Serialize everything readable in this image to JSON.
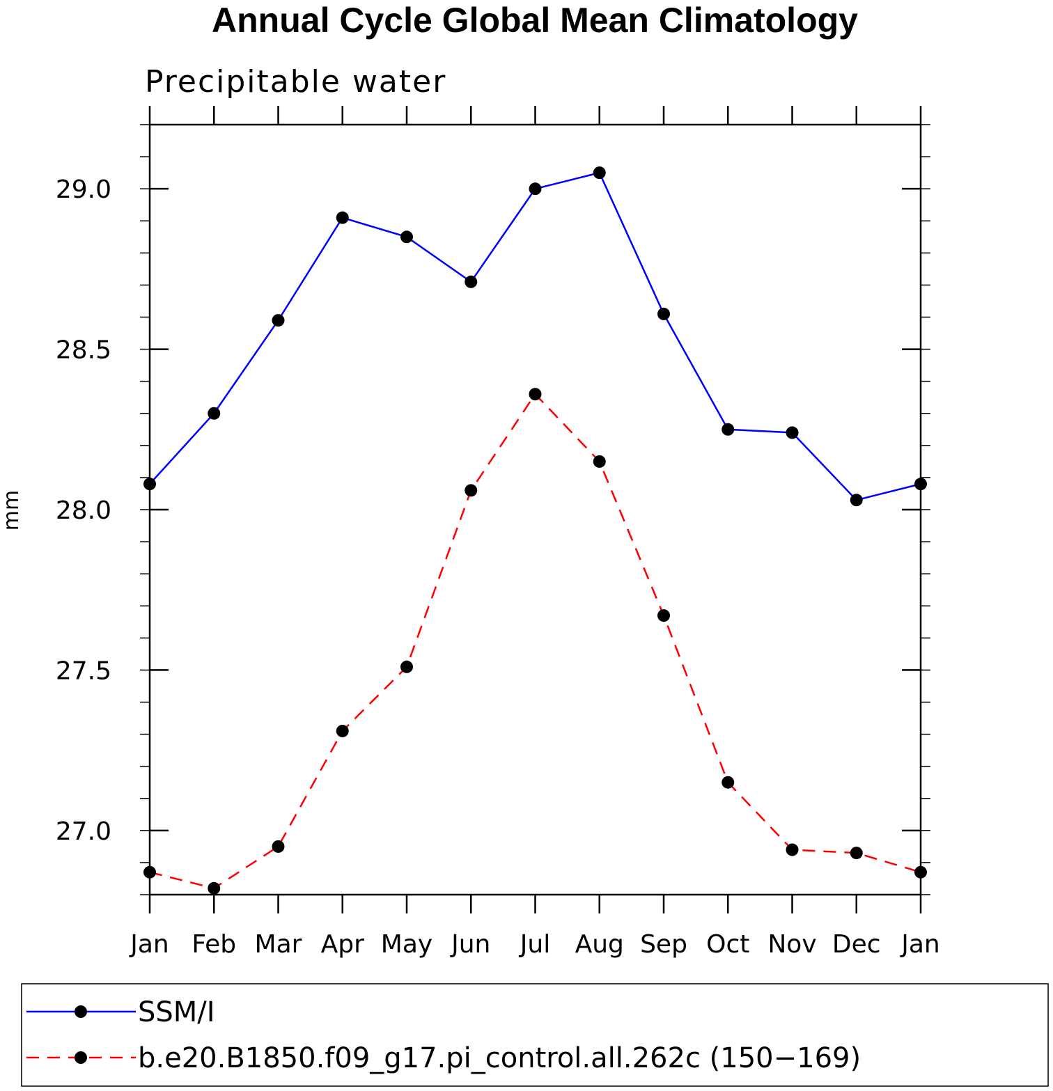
{
  "chart_data": {
    "type": "line",
    "title": "Annual Cycle Global Mean Climatology",
    "subtitle": "Precipitable water",
    "xlabel": "",
    "ylabel": "mm",
    "categories": [
      "Jan",
      "Feb",
      "Mar",
      "Apr",
      "May",
      "Jun",
      "Jul",
      "Aug",
      "Sep",
      "Oct",
      "Nov",
      "Dec",
      "Jan"
    ],
    "ylim": [
      26.8,
      29.2
    ],
    "yticks": [
      27.0,
      27.5,
      28.0,
      28.5,
      29.0
    ],
    "ytick_labels": [
      "27.0",
      "27.5",
      "28.0",
      "28.5",
      "29.0"
    ],
    "series": [
      {
        "name": "SSM/I",
        "color": "#0000ff",
        "line_style": "solid",
        "marker": "filled-circle",
        "values": [
          28.08,
          28.3,
          28.59,
          28.91,
          28.85,
          28.71,
          29.0,
          29.05,
          28.61,
          28.25,
          28.24,
          28.03,
          28.08
        ]
      },
      {
        "name": "b.e20.B1850.f09_g17.pi_control.all.262c (150-169)",
        "color": "#ff0000",
        "line_style": "dashed",
        "marker": "filled-circle",
        "values": [
          26.87,
          26.82,
          26.95,
          27.31,
          27.51,
          28.06,
          28.36,
          28.15,
          27.67,
          27.15,
          26.94,
          26.93,
          26.87
        ]
      }
    ],
    "legend": {
      "placement": "bottom",
      "entries": [
        "SSM/I",
        "b.e20.B1850.f09_g17.pi_control.all.262c (150−169)"
      ]
    }
  }
}
